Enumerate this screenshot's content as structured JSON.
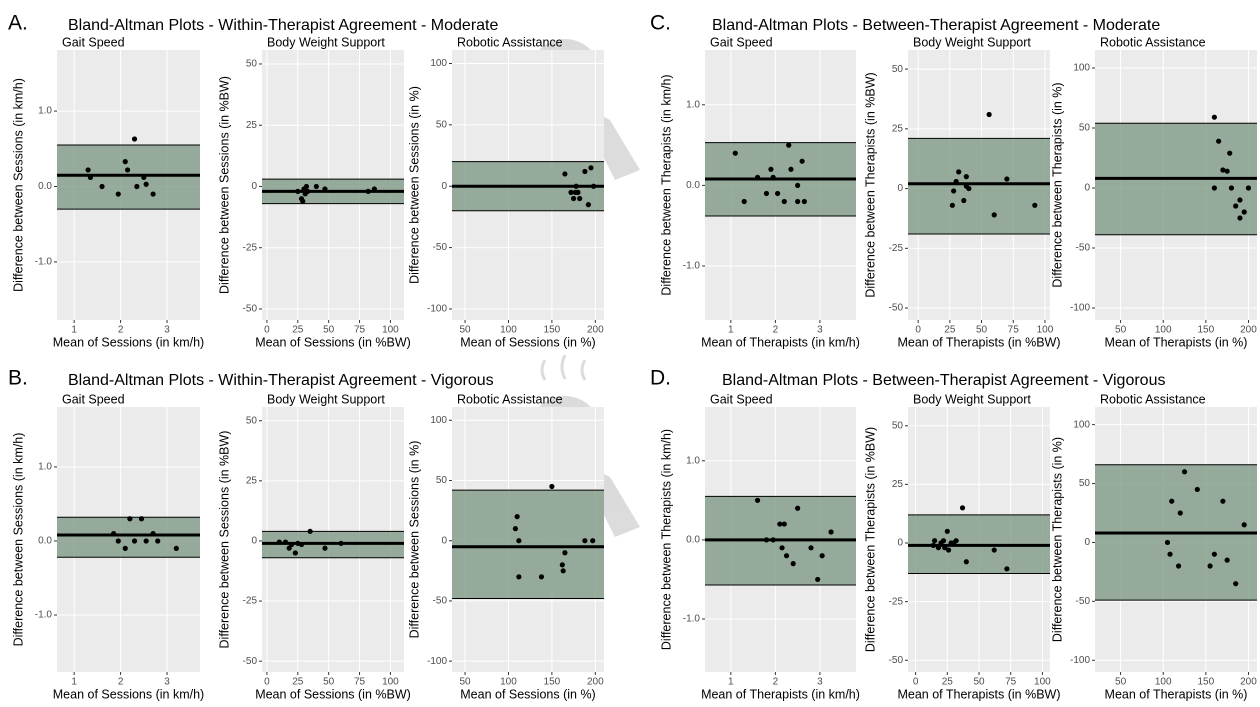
{
  "chart_data": [
    {
      "type": "scatter",
      "label": "A.",
      "title": "Bland-Altman Plots - Within-Therapist Agreement - Moderate",
      "band_color": "#7f9a86",
      "subplots": [
        {
          "title": "Gait Speed",
          "xlabel": "Mean of Sessions (in km/h)",
          "ylabel": "Difference between Sessions (in km/h)",
          "xlim": [
            0.63,
            3.71
          ],
          "xticks": [
            1,
            2,
            3
          ],
          "ylim": [
            -1.77,
            1.81
          ],
          "yticks": [
            {
              "value": -1,
              "label": "-1.0"
            },
            {
              "value": 0,
              "label": "0.0"
            },
            {
              "value": 1,
              "label": "1.0"
            }
          ],
          "mean": 0.15,
          "upper": 0.55,
          "lower": -0.3,
          "x": [
            1.3,
            1.35,
            1.6,
            1.95,
            2.1,
            2.15,
            2.3,
            2.35,
            2.5,
            2.55,
            2.7
          ],
          "y": [
            0.22,
            0.12,
            0.0,
            -0.1,
            0.33,
            0.22,
            0.63,
            0.0,
            0.12,
            0.03,
            -0.1
          ]
        },
        {
          "title": "Body Weight Support",
          "xlabel": "Mean of Sessions (in %BW)",
          "ylabel": "Difference between Sessions (in %BW)",
          "xlim": [
            -4,
            111
          ],
          "xticks": [
            0,
            25,
            50,
            75,
            100
          ],
          "ylim": [
            -54.5,
            55.7
          ],
          "yticks": [
            -50,
            -25,
            0,
            25,
            50
          ],
          "mean": -2,
          "upper": 3,
          "lower": -7,
          "x": [
            25,
            28,
            29,
            30,
            31,
            32,
            33,
            40,
            47,
            82,
            87
          ],
          "y": [
            -2,
            -5,
            -6,
            -1,
            -3,
            0,
            -2,
            0,
            -1,
            -2,
            -1
          ]
        },
        {
          "title": "Robotic Assistance",
          "xlabel": "Mean of Sessions (in %)",
          "ylabel": "Difference between Sessions (in %)",
          "xlim": [
            35,
            210
          ],
          "xticks": [
            50,
            100,
            150,
            200
          ],
          "ylim": [
            -109,
            111
          ],
          "yticks": [
            -100,
            -50,
            0,
            50,
            100
          ],
          "mean": 0,
          "upper": 20,
          "lower": -20,
          "x": [
            165,
            172,
            175,
            177,
            178,
            180,
            182,
            188,
            192,
            195,
            198
          ],
          "y": [
            10,
            -5,
            -10,
            -5,
            0,
            -5,
            -10,
            12,
            -15,
            15,
            0
          ]
        }
      ]
    },
    {
      "type": "scatter",
      "label": "B.",
      "title": "Bland-Altman Plots - Within-Therapist Agreement - Vigorous",
      "band_color": "#7f9a86",
      "subplots": [
        {
          "title": "Gait Speed",
          "xlabel": "Mean of Sessions (in km/h)",
          "ylabel": "Difference between Sessions (in km/h)",
          "xlim": [
            0.63,
            3.71
          ],
          "xticks": [
            1,
            2,
            3
          ],
          "ylim": [
            -1.77,
            1.81
          ],
          "yticks": [
            {
              "value": -1,
              "label": "-1.0"
            },
            {
              "value": 0,
              "label": "0.0"
            },
            {
              "value": 1,
              "label": "1.0"
            }
          ],
          "mean": 0.08,
          "upper": 0.32,
          "lower": -0.22,
          "x": [
            1.85,
            1.95,
            2.1,
            2.2,
            2.3,
            2.45,
            2.55,
            2.7,
            2.8,
            3.2
          ],
          "y": [
            0.1,
            0.0,
            -0.1,
            0.3,
            0.0,
            0.3,
            0.0,
            0.1,
            0.0,
            -0.1
          ]
        },
        {
          "title": "Body Weight Support",
          "xlabel": "Mean of Sessions (in %BW)",
          "ylabel": "Difference between Sessions (in %BW)",
          "xlim": [
            -4,
            111
          ],
          "xticks": [
            0,
            25,
            50,
            75,
            100
          ],
          "ylim": [
            -54.5,
            55.7
          ],
          "yticks": [
            -50,
            -25,
            0,
            25,
            50
          ],
          "mean": -1,
          "upper": 4,
          "lower": -7,
          "x": [
            10,
            15,
            18,
            20,
            23,
            25,
            28,
            35,
            47,
            60
          ],
          "y": [
            -0.5,
            -0.5,
            -3,
            -1.5,
            -5,
            -1,
            -1.5,
            4,
            -3,
            -1
          ]
        },
        {
          "title": "Robotic Assistance",
          "xlabel": "Mean of Sessions (in %)",
          "ylabel": "Difference between Sessions (in %)",
          "xlim": [
            35,
            210
          ],
          "xticks": [
            50,
            100,
            150,
            200
          ],
          "ylim": [
            -109,
            111
          ],
          "yticks": [
            -100,
            -50,
            0,
            50,
            100
          ],
          "mean": -5,
          "upper": 42,
          "lower": -48,
          "x": [
            108,
            110,
            112,
            112,
            138,
            150,
            162,
            163,
            165,
            188,
            197
          ],
          "y": [
            10,
            20,
            0,
            -30,
            -30,
            45,
            -20,
            -25,
            -10,
            0,
            0
          ]
        }
      ]
    },
    {
      "type": "scatter",
      "label": "C.",
      "title": "Bland-Altman Plots - Between-Therapist Agreement - Moderate",
      "band_color": "#7f9a86",
      "subplots": [
        {
          "title": "Gait Speed",
          "xlabel": "Mean of Therapists (in km/h)",
          "ylabel": "Difference between Therapists (in km/h)",
          "xlim": [
            0.42,
            3.81
          ],
          "xticks": [
            1,
            2,
            3
          ],
          "ylim": [
            -1.67,
            1.68
          ],
          "yticks": [
            {
              "value": -1,
              "label": "-1.0"
            },
            {
              "value": 0,
              "label": "0.0"
            },
            {
              "value": 1,
              "label": "1.0"
            }
          ],
          "mean": 0.08,
          "upper": 0.53,
          "lower": -0.38,
          "x": [
            1.1,
            1.3,
            1.6,
            1.8,
            1.9,
            1.95,
            2.05,
            2.2,
            2.3,
            2.35,
            2.5,
            2.5,
            2.6,
            2.65
          ],
          "y": [
            0.4,
            -0.2,
            0.1,
            -0.1,
            0.2,
            0.1,
            -0.1,
            -0.2,
            0.5,
            0.2,
            -0.2,
            0.0,
            0.3,
            -0.2
          ]
        },
        {
          "title": "Body Weight Support",
          "xlabel": "Mean of Therapists (in %BW)",
          "ylabel": "Difference between Therapists (in %BW)",
          "xlim": [
            -8,
            104
          ],
          "xticks": [
            0,
            25,
            50,
            75,
            100
          ],
          "ylim": [
            -55,
            58
          ],
          "yticks": [
            -50,
            -25,
            0,
            25,
            50
          ],
          "mean": 2,
          "upper": 21,
          "lower": -19,
          "x": [
            27,
            28,
            30,
            32,
            36,
            38,
            38,
            40,
            56,
            60,
            70,
            92
          ],
          "y": [
            -7,
            -1,
            3,
            7,
            -5,
            1,
            5,
            0,
            31,
            -11,
            4,
            -7
          ]
        },
        {
          "title": "Robotic Assistance",
          "xlabel": "Mean of Therapists (in %)",
          "ylabel": "Difference between Therapists (in %)",
          "xlim": [
            20,
            210
          ],
          "xticks": [
            50,
            100,
            150,
            200
          ],
          "ylim": [
            -110,
            115
          ],
          "yticks": [
            -100,
            -50,
            0,
            50,
            100
          ],
          "mean": 8,
          "upper": 54,
          "lower": -39,
          "x": [
            160,
            160,
            165,
            170,
            175,
            178,
            180,
            185,
            190,
            190,
            195,
            200
          ],
          "y": [
            59,
            0,
            39,
            15,
            14,
            29,
            0,
            -15,
            -10,
            -25,
            -20,
            0
          ]
        }
      ]
    },
    {
      "type": "scatter",
      "label": "D.",
      "title": "Bland-Altman Plots - Between-Therapist Agreement - Vigorous",
      "band_color": "#7f9a86",
      "subplots": [
        {
          "title": "Gait Speed",
          "xlabel": "Mean of Therapists (in km/h)",
          "ylabel": "Difference between Therapists (in km/h)",
          "xlim": [
            0.42,
            3.81
          ],
          "xticks": [
            1,
            2,
            3
          ],
          "ylim": [
            -1.67,
            1.68
          ],
          "yticks": [
            {
              "value": -1,
              "label": "-1.0"
            },
            {
              "value": 0,
              "label": "0.0"
            },
            {
              "value": 1,
              "label": "1.0"
            }
          ],
          "mean": 0.0,
          "upper": 0.55,
          "lower": -0.57,
          "x": [
            1.6,
            1.8,
            1.95,
            2.1,
            2.15,
            2.2,
            2.25,
            2.4,
            2.5,
            2.8,
            2.95,
            3.05,
            3.25
          ],
          "y": [
            0.5,
            0.0,
            0.0,
            0.2,
            -0.1,
            0.2,
            -0.2,
            -0.3,
            0.4,
            -0.1,
            -0.5,
            -0.2,
            0.1
          ]
        },
        {
          "title": "Body Weight Support",
          "xlabel": "Mean of Therapists (in %BW)",
          "ylabel": "Difference between Therapists (in %BW)",
          "xlim": [
            -6,
            106
          ],
          "xticks": [
            0,
            25,
            50,
            75,
            100
          ],
          "ylim": [
            -55,
            58
          ],
          "yticks": [
            -50,
            -25,
            0,
            25,
            50
          ],
          "mean": -1,
          "upper": 12,
          "lower": -13,
          "x": [
            14,
            15,
            18,
            20,
            22,
            23,
            25,
            26,
            28,
            30,
            32,
            37,
            40,
            62,
            72
          ],
          "y": [
            -1,
            1,
            -2,
            0,
            1,
            -2,
            5,
            -3,
            0,
            0,
            1,
            15,
            -8,
            -3,
            -11
          ]
        },
        {
          "title": "Robotic Assistance",
          "xlabel": "Mean of Therapists (in %)",
          "ylabel": "Difference between Therapists (in %)",
          "xlim": [
            20,
            210
          ],
          "xticks": [
            50,
            100,
            150,
            200
          ],
          "ylim": [
            -110,
            115
          ],
          "yticks": [
            -100,
            -50,
            0,
            50,
            100
          ],
          "mean": 8,
          "upper": 66,
          "lower": -49,
          "x": [
            105,
            108,
            110,
            118,
            120,
            125,
            140,
            155,
            160,
            170,
            175,
            185,
            195
          ],
          "y": [
            0,
            -10,
            35,
            -20,
            25,
            60,
            45,
            -20,
            -10,
            35,
            -15,
            -35,
            15
          ]
        }
      ]
    }
  ]
}
